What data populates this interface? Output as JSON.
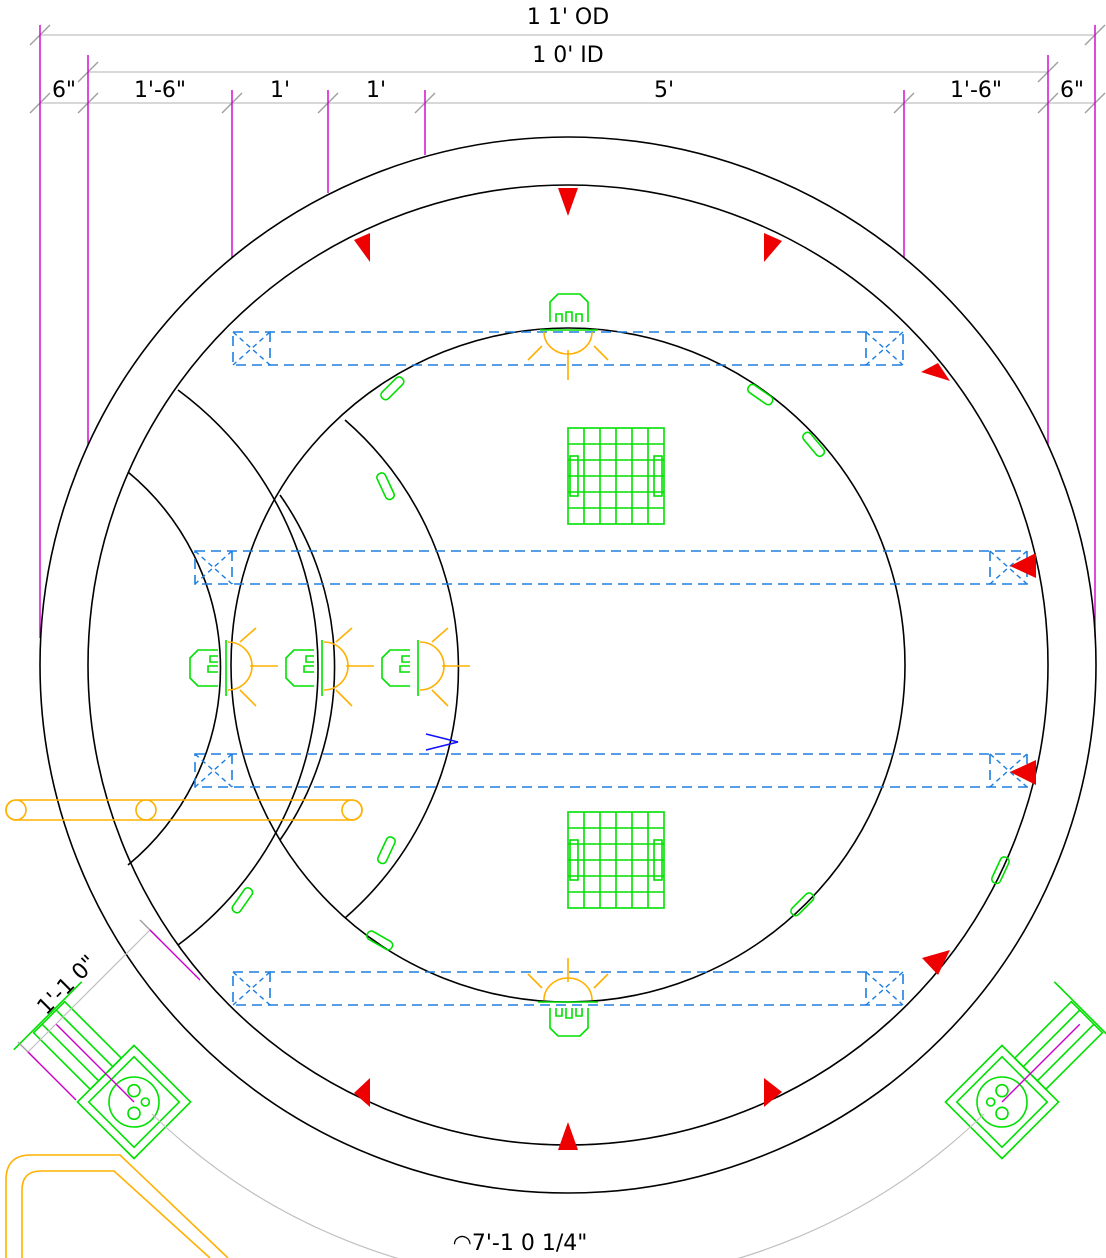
{
  "dimensions": {
    "od": "1 1' OD",
    "id": "1 0' ID",
    "segments": [
      "6\"",
      "1'-6\"",
      "1'",
      "1'",
      "5'",
      "1'-6\"",
      "6\""
    ],
    "clearance": "1'-1 0\"",
    "arc_length": "◠7'-1 0  1/4\""
  },
  "colors": {
    "walls": "#000000",
    "dimension_extensions": "#cc00cc",
    "beams": "#1e7fe0",
    "fixtures": "#00e000",
    "lights": "#ffb000",
    "markers": "#ee0000",
    "flow_arrow": "#1010ff"
  },
  "icons": [
    "wall-light-icon",
    "floor-drain-grate-icon",
    "return-fitting-icon",
    "skimmer-icon",
    "red-anchor-marker-icon",
    "flow-direction-arrow-icon"
  ]
}
